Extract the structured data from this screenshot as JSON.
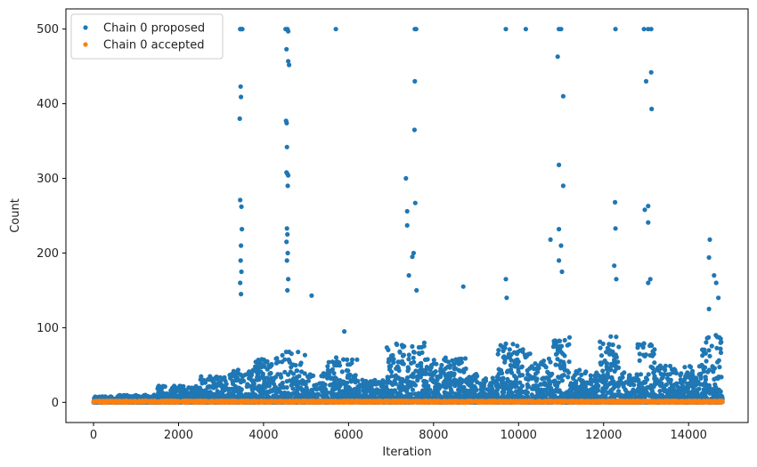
{
  "chart_data": {
    "type": "scatter",
    "xlabel": "Iteration",
    "ylabel": "Count",
    "xlim": [
      -650,
      15400
    ],
    "ylim": [
      -27,
      527
    ],
    "x_ticks": [
      0,
      2000,
      4000,
      6000,
      8000,
      10000,
      12000,
      14000
    ],
    "x_tick_labels": [
      "0",
      "2000",
      "4000",
      "6000",
      "8000",
      "10000",
      "12000",
      "14000"
    ],
    "y_ticks": [
      0,
      100,
      200,
      300,
      400,
      500
    ],
    "y_tick_labels": [
      "0",
      "100",
      "200",
      "300",
      "400",
      "500"
    ],
    "grid": false,
    "legend_position": "top-left",
    "n_iterations": 14800,
    "series": [
      {
        "name": "Chain 0 proposed",
        "color": "#1f77b4",
        "marker": "circle",
        "baseline_segments": [
          {
            "x": [
              0,
              500
            ],
            "y_max": 8
          },
          {
            "x": [
              500,
              1500
            ],
            "y_max": 10
          },
          {
            "x": [
              1500,
              2500
            ],
            "y_max": 22
          },
          {
            "x": [
              2500,
              3200
            ],
            "y_max": 35
          },
          {
            "x": [
              3200,
              3800
            ],
            "y_max": 45
          },
          {
            "x": [
              3800,
              4400
            ],
            "y_max": 60
          },
          {
            "x": [
              4400,
              5000
            ],
            "y_max": 70
          },
          {
            "x": [
              5000,
              5500
            ],
            "y_max": 40
          },
          {
            "x": [
              5500,
              6200
            ],
            "y_max": 60
          },
          {
            "x": [
              6200,
              6900
            ],
            "y_max": 30
          },
          {
            "x": [
              6900,
              7800
            ],
            "y_max": 80
          },
          {
            "x": [
              7800,
              8800
            ],
            "y_max": 60
          },
          {
            "x": [
              8800,
              9500
            ],
            "y_max": 40
          },
          {
            "x": [
              9500,
              10300
            ],
            "y_max": 80
          },
          {
            "x": [
              10300,
              10800
            ],
            "y_max": 60
          },
          {
            "x": [
              10800,
              11200
            ],
            "y_max": 90
          },
          {
            "x": [
              11200,
              11900
            ],
            "y_max": 45
          },
          {
            "x": [
              11900,
              12400
            ],
            "y_max": 90
          },
          {
            "x": [
              12400,
              12800
            ],
            "y_max": 40
          },
          {
            "x": [
              12800,
              13200
            ],
            "y_max": 80
          },
          {
            "x": [
              13200,
              14300
            ],
            "y_max": 50
          },
          {
            "x": [
              14300,
              14800
            ],
            "y_max": 90
          }
        ],
        "outliers": [
          {
            "x": 3450,
            "y": 500
          },
          {
            "x": 3480,
            "y": 500
          },
          {
            "x": 3500,
            "y": 500
          },
          {
            "x": 3460,
            "y": 423
          },
          {
            "x": 3470,
            "y": 409
          },
          {
            "x": 3440,
            "y": 380
          },
          {
            "x": 3450,
            "y": 271
          },
          {
            "x": 3480,
            "y": 262
          },
          {
            "x": 3490,
            "y": 232
          },
          {
            "x": 3470,
            "y": 210
          },
          {
            "x": 3460,
            "y": 190
          },
          {
            "x": 3480,
            "y": 175
          },
          {
            "x": 3450,
            "y": 160
          },
          {
            "x": 3470,
            "y": 145
          },
          {
            "x": 4520,
            "y": 500
          },
          {
            "x": 4560,
            "y": 500
          },
          {
            "x": 4580,
            "y": 497
          },
          {
            "x": 4540,
            "y": 473
          },
          {
            "x": 4580,
            "y": 457
          },
          {
            "x": 4600,
            "y": 452
          },
          {
            "x": 4530,
            "y": 377
          },
          {
            "x": 4545,
            "y": 374
          },
          {
            "x": 4550,
            "y": 342
          },
          {
            "x": 4540,
            "y": 308
          },
          {
            "x": 4560,
            "y": 306
          },
          {
            "x": 4580,
            "y": 304
          },
          {
            "x": 4570,
            "y": 290
          },
          {
            "x": 4550,
            "y": 233
          },
          {
            "x": 4560,
            "y": 225
          },
          {
            "x": 4540,
            "y": 215
          },
          {
            "x": 4570,
            "y": 200
          },
          {
            "x": 4550,
            "y": 190
          },
          {
            "x": 4580,
            "y": 165
          },
          {
            "x": 4560,
            "y": 150
          },
          {
            "x": 5700,
            "y": 500
          },
          {
            "x": 5130,
            "y": 143
          },
          {
            "x": 5900,
            "y": 95
          },
          {
            "x": 7350,
            "y": 300
          },
          {
            "x": 7380,
            "y": 256
          },
          {
            "x": 7380,
            "y": 237
          },
          {
            "x": 7560,
            "y": 500
          },
          {
            "x": 7590,
            "y": 500
          },
          {
            "x": 7560,
            "y": 430
          },
          {
            "x": 7550,
            "y": 365
          },
          {
            "x": 7570,
            "y": 267
          },
          {
            "x": 7530,
            "y": 200
          },
          {
            "x": 7500,
            "y": 195
          },
          {
            "x": 7420,
            "y": 170
          },
          {
            "x": 7600,
            "y": 150
          },
          {
            "x": 8700,
            "y": 155
          },
          {
            "x": 9700,
            "y": 500
          },
          {
            "x": 10170,
            "y": 500
          },
          {
            "x": 9700,
            "y": 165
          },
          {
            "x": 9720,
            "y": 140
          },
          {
            "x": 10950,
            "y": 500
          },
          {
            "x": 11000,
            "y": 500
          },
          {
            "x": 10920,
            "y": 463
          },
          {
            "x": 11050,
            "y": 410
          },
          {
            "x": 10950,
            "y": 318
          },
          {
            "x": 11050,
            "y": 290
          },
          {
            "x": 10950,
            "y": 232
          },
          {
            "x": 10750,
            "y": 218
          },
          {
            "x": 11000,
            "y": 210
          },
          {
            "x": 10950,
            "y": 190
          },
          {
            "x": 11020,
            "y": 175
          },
          {
            "x": 12280,
            "y": 500
          },
          {
            "x": 12270,
            "y": 268
          },
          {
            "x": 12280,
            "y": 233
          },
          {
            "x": 12250,
            "y": 183
          },
          {
            "x": 12300,
            "y": 165
          },
          {
            "x": 12950,
            "y": 500
          },
          {
            "x": 13050,
            "y": 500
          },
          {
            "x": 13120,
            "y": 500
          },
          {
            "x": 13000,
            "y": 430
          },
          {
            "x": 13120,
            "y": 442
          },
          {
            "x": 13130,
            "y": 393
          },
          {
            "x": 13050,
            "y": 263
          },
          {
            "x": 12970,
            "y": 258
          },
          {
            "x": 13050,
            "y": 241
          },
          {
            "x": 13100,
            "y": 165
          },
          {
            "x": 13050,
            "y": 160
          },
          {
            "x": 14500,
            "y": 218
          },
          {
            "x": 14480,
            "y": 194
          },
          {
            "x": 14600,
            "y": 170
          },
          {
            "x": 14650,
            "y": 160
          },
          {
            "x": 14700,
            "y": 140
          },
          {
            "x": 14480,
            "y": 125
          }
        ]
      },
      {
        "name": "Chain 0 accepted",
        "color": "#ff7f0e",
        "marker": "circle",
        "baseline_segments": [
          {
            "x": [
              0,
              14800
            ],
            "y_max": 2
          }
        ],
        "outliers": []
      }
    ]
  }
}
